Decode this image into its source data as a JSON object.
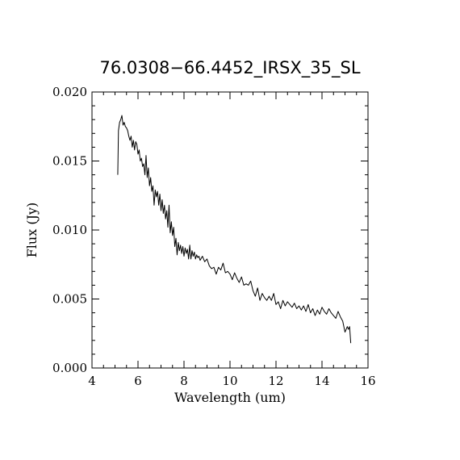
{
  "chart_data": {
    "type": "line",
    "title": "76.0308−66.4452_IRSX_35_SL",
    "xlabel": "Wavelength (um)",
    "ylabel": "Flux (Jy)",
    "xlim": [
      4,
      16
    ],
    "ylim": [
      0.0,
      0.02
    ],
    "x_ticks": [
      4,
      6,
      8,
      10,
      12,
      14,
      16
    ],
    "x_tick_labels": [
      "4",
      "6",
      "8",
      "10",
      "12",
      "14",
      "16"
    ],
    "y_ticks": [
      0.0,
      0.005,
      0.01,
      0.015,
      0.02
    ],
    "y_tick_labels": [
      "0.000",
      "0.005",
      "0.010",
      "0.015",
      "0.020"
    ],
    "grid": false,
    "line_color": "#000000",
    "series": [
      {
        "x": [
          5.12,
          5.15,
          5.2,
          5.25,
          5.3,
          5.35,
          5.4,
          5.45,
          5.5,
          5.55,
          5.6,
          5.65,
          5.7,
          5.75,
          5.8,
          5.85,
          5.9,
          5.95,
          6.0,
          6.05,
          6.1,
          6.15,
          6.2,
          6.25,
          6.3,
          6.35,
          6.4,
          6.45,
          6.5,
          6.55,
          6.6,
          6.65,
          6.7,
          6.75,
          6.8,
          6.85,
          6.9,
          6.95,
          7.0,
          7.05,
          7.1,
          7.15,
          7.2,
          7.25,
          7.3,
          7.35,
          7.4,
          7.45,
          7.5,
          7.55,
          7.6,
          7.65,
          7.7,
          7.75,
          7.8,
          7.85,
          7.9,
          7.95,
          8.0,
          8.05,
          8.1,
          8.15,
          8.2,
          8.25,
          8.3,
          8.35,
          8.4,
          8.45,
          8.5,
          8.55,
          8.6,
          8.65,
          8.7,
          8.8,
          8.9,
          9.0,
          9.1,
          9.2,
          9.3,
          9.4,
          9.5,
          9.6,
          9.7,
          9.8,
          9.9,
          10.0,
          10.1,
          10.2,
          10.3,
          10.4,
          10.5,
          10.6,
          10.7,
          10.8,
          10.9,
          11.0,
          11.1,
          11.2,
          11.3,
          11.4,
          11.5,
          11.6,
          11.7,
          11.8,
          11.9,
          12.0,
          12.1,
          12.2,
          12.3,
          12.4,
          12.5,
          12.6,
          12.7,
          12.8,
          12.9,
          13.0,
          13.1,
          13.2,
          13.3,
          13.4,
          13.5,
          13.6,
          13.7,
          13.8,
          13.9,
          14.0,
          14.1,
          14.2,
          14.3,
          14.4,
          14.5,
          14.6,
          14.7,
          14.8,
          14.9,
          15.0,
          15.1,
          15.15,
          15.2,
          15.25
        ],
        "y": [
          0.014,
          0.0172,
          0.0178,
          0.018,
          0.0183,
          0.0176,
          0.0178,
          0.0175,
          0.0174,
          0.0172,
          0.0168,
          0.0165,
          0.0168,
          0.016,
          0.0165,
          0.0158,
          0.0164,
          0.0162,
          0.0155,
          0.0158,
          0.015,
          0.0152,
          0.0146,
          0.0148,
          0.014,
          0.0154,
          0.0138,
          0.0145,
          0.0132,
          0.0138,
          0.0128,
          0.0132,
          0.0118,
          0.0129,
          0.0124,
          0.0128,
          0.0118,
          0.0126,
          0.0114,
          0.0122,
          0.0112,
          0.0118,
          0.0108,
          0.0114,
          0.0102,
          0.0118,
          0.0098,
          0.0106,
          0.0096,
          0.0102,
          0.0088,
          0.0094,
          0.0082,
          0.0091,
          0.0085,
          0.0089,
          0.0083,
          0.0088,
          0.0081,
          0.0087,
          0.0083,
          0.0086,
          0.0079,
          0.0089,
          0.0079,
          0.0085,
          0.0081,
          0.0084,
          0.0079,
          0.0082,
          0.008,
          0.0081,
          0.0078,
          0.0081,
          0.0077,
          0.0079,
          0.0074,
          0.0072,
          0.0073,
          0.0068,
          0.0073,
          0.0071,
          0.0076,
          0.0069,
          0.007,
          0.0068,
          0.0064,
          0.0069,
          0.0065,
          0.0062,
          0.0066,
          0.006,
          0.0061,
          0.006,
          0.0063,
          0.0056,
          0.0052,
          0.0058,
          0.0049,
          0.0054,
          0.0051,
          0.0049,
          0.0052,
          0.0049,
          0.0054,
          0.0046,
          0.0048,
          0.0043,
          0.0049,
          0.0045,
          0.0048,
          0.0046,
          0.0044,
          0.0047,
          0.0043,
          0.0045,
          0.0042,
          0.0045,
          0.0041,
          0.0046,
          0.004,
          0.0043,
          0.0038,
          0.0042,
          0.0039,
          0.0044,
          0.0041,
          0.0039,
          0.0043,
          0.004,
          0.0038,
          0.0036,
          0.0041,
          0.0037,
          0.0034,
          0.0026,
          0.003,
          0.0028,
          0.003,
          0.0018
        ]
      }
    ]
  }
}
